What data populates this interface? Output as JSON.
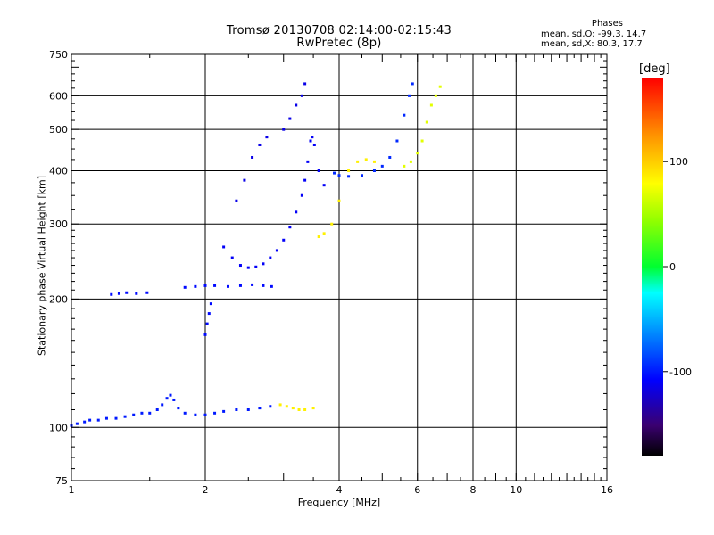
{
  "header": {
    "title_line1": "Tromsø 20130708 02:14:00-02:15:43",
    "title_line2": "RwPretec (8p)"
  },
  "stats": {
    "heading": "Phases",
    "o_line": "mean, sd,O: -99.3, 14.7",
    "x_line": "mean, sd,X:  80.3, 17.7"
  },
  "chart_data": {
    "type": "scatter",
    "title": "Tromsø 20130708 02:14:00-02:15:43",
    "subtitle": "RwPretec (8p)",
    "xlabel": "Frequency [MHz]",
    "ylabel": "Stationary phase Virtual Height [km]",
    "x_scale": "log",
    "y_scale": "log",
    "xlim": [
      1,
      16
    ],
    "ylim": [
      75,
      750
    ],
    "x_ticks": [
      1,
      2,
      4,
      6,
      8,
      10,
      16
    ],
    "x_gridlines": [
      2,
      4,
      6,
      8,
      10
    ],
    "y_ticks": [
      75,
      100,
      200,
      300,
      400,
      500,
      600,
      750
    ],
    "y_gridlines": [
      100,
      200,
      300,
      400,
      500,
      600
    ],
    "grid": true,
    "colorbar": {
      "unit": "[deg]",
      "range": [
        -180,
        180
      ],
      "ticks": [
        -100,
        0,
        100
      ]
    },
    "series": [
      {
        "value": -100,
        "points": [
          [
            1.0,
            101
          ],
          [
            1.03,
            102
          ],
          [
            1.07,
            103
          ],
          [
            1.1,
            104
          ],
          [
            1.15,
            104
          ],
          [
            1.2,
            105
          ],
          [
            1.26,
            105
          ],
          [
            1.32,
            106
          ],
          [
            1.38,
            107
          ],
          [
            1.44,
            108
          ],
          [
            1.5,
            108
          ],
          [
            1.56,
            110
          ],
          [
            1.6,
            113
          ],
          [
            1.64,
            117
          ],
          [
            1.67,
            119
          ],
          [
            1.7,
            116
          ],
          [
            1.74,
            111
          ],
          [
            1.8,
            108
          ],
          [
            1.9,
            107
          ],
          [
            2.0,
            107
          ],
          [
            2.1,
            108
          ],
          [
            2.2,
            109
          ],
          [
            2.35,
            110
          ],
          [
            2.5,
            110
          ],
          [
            2.65,
            111
          ],
          [
            2.8,
            112
          ]
        ]
      },
      {
        "value": -105,
        "points": [
          [
            1.23,
            205
          ],
          [
            1.28,
            206
          ],
          [
            1.33,
            207
          ],
          [
            1.4,
            206
          ],
          [
            1.48,
            207
          ],
          [
            1.8,
            213
          ],
          [
            1.9,
            214
          ],
          [
            2.0,
            215
          ],
          [
            2.1,
            215
          ],
          [
            2.25,
            214
          ],
          [
            2.4,
            215
          ],
          [
            2.55,
            216
          ],
          [
            2.7,
            215
          ],
          [
            2.82,
            214
          ],
          [
            2.0,
            165
          ],
          [
            2.02,
            175
          ],
          [
            2.04,
            185
          ],
          [
            2.06,
            195
          ]
        ]
      },
      {
        "value": -110,
        "points": [
          [
            2.2,
            265
          ],
          [
            2.3,
            250
          ],
          [
            2.4,
            240
          ],
          [
            2.5,
            237
          ],
          [
            2.6,
            238
          ],
          [
            2.7,
            242
          ],
          [
            2.8,
            250
          ],
          [
            2.9,
            260
          ],
          [
            3.0,
            275
          ],
          [
            3.1,
            295
          ],
          [
            3.2,
            320
          ],
          [
            3.3,
            350
          ],
          [
            3.35,
            380
          ],
          [
            3.4,
            420
          ],
          [
            3.45,
            470
          ],
          [
            3.48,
            480
          ],
          [
            3.52,
            460
          ],
          [
            3.6,
            400
          ],
          [
            3.7,
            370
          ]
        ]
      },
      {
        "value": -115,
        "points": [
          [
            2.35,
            340
          ],
          [
            2.45,
            380
          ],
          [
            2.55,
            430
          ],
          [
            2.65,
            460
          ],
          [
            2.75,
            480
          ],
          [
            3.0,
            500
          ],
          [
            3.1,
            530
          ],
          [
            3.2,
            570
          ],
          [
            3.3,
            600
          ],
          [
            3.35,
            640
          ]
        ]
      },
      {
        "value": -95,
        "points": [
          [
            3.9,
            395
          ],
          [
            4.0,
            390
          ],
          [
            4.2,
            388
          ],
          [
            4.5,
            390
          ],
          [
            4.8,
            400
          ],
          [
            5.0,
            410
          ],
          [
            5.2,
            430
          ],
          [
            5.4,
            470
          ],
          [
            5.6,
            540
          ],
          [
            5.75,
            600
          ],
          [
            5.85,
            640
          ]
        ]
      },
      {
        "value": 85,
        "points": [
          [
            2.95,
            113
          ],
          [
            3.05,
            112
          ],
          [
            3.15,
            111
          ],
          [
            3.25,
            110
          ],
          [
            3.35,
            110
          ],
          [
            3.5,
            111
          ],
          [
            3.6,
            280
          ],
          [
            3.7,
            285
          ],
          [
            3.85,
            300
          ],
          [
            4.0,
            340
          ],
          [
            4.2,
            400
          ],
          [
            4.4,
            420
          ],
          [
            4.6,
            425
          ],
          [
            4.8,
            420
          ]
        ]
      },
      {
        "value": 70,
        "points": [
          [
            5.6,
            410
          ],
          [
            5.8,
            420
          ],
          [
            6.0,
            440
          ],
          [
            6.15,
            470
          ],
          [
            6.3,
            520
          ],
          [
            6.45,
            570
          ],
          [
            6.6,
            600
          ],
          [
            6.75,
            630
          ]
        ]
      }
    ]
  }
}
